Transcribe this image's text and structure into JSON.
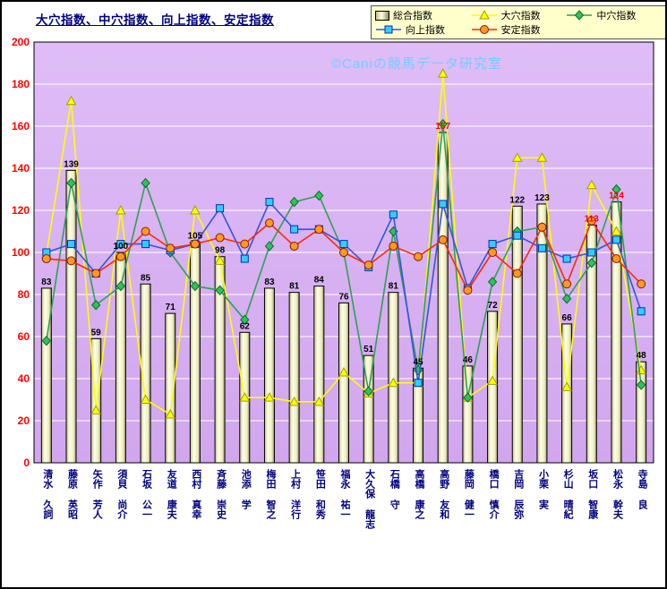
{
  "chart_data": {
    "type": "bar+line",
    "title": "大穴指数、中穴指数、向上指数、安定指数",
    "watermark": "©Caniの競馬データ研究室",
    "ylim": [
      0,
      200
    ],
    "ytick_step": 20,
    "grid": true,
    "legend_position": "top-right",
    "axis_label_color": "#ff0000",
    "category_label_color": "#000080",
    "categories": [
      "清水 久詞",
      "藤原 英昭",
      "矢作 芳人",
      "須貝 尚介",
      "石坂 公一",
      "友道 康夫",
      "西村 真幸",
      "斉藤 崇史",
      "池添 学",
      "梅田 智之",
      "上村 洋行",
      "笹田 和秀",
      "福永 祐一",
      "大久保 龍志",
      "石橋 守",
      "高橋 康之",
      "高野 友和",
      "藤岡 健一",
      "橋口 慎介",
      "吉岡 辰弥",
      "小栗 実",
      "杉山 晴紀",
      "坂口 智康",
      "松永 幹夫",
      "寺島 良"
    ],
    "bar_series": {
      "name": "総合指数",
      "values": [
        83,
        139,
        59,
        100,
        85,
        71,
        105,
        98,
        62,
        83,
        81,
        84,
        76,
        51,
        81,
        45,
        157,
        46,
        72,
        122,
        123,
        66,
        113,
        124,
        48
      ],
      "label_color": "#000000",
      "highlight_label_color": "#ff0000",
      "highlight_label_indices": [
        16,
        22,
        23
      ]
    },
    "line_series": [
      {
        "name": "大穴指数",
        "marker": "triangle",
        "line_color": "#ffff00",
        "marker_fill": "#ffff00",
        "marker_stroke": "#a0a000",
        "values": [
          99,
          172,
          25,
          120,
          30,
          23,
          120,
          96,
          31,
          31,
          29,
          29,
          43,
          33,
          38,
          38,
          185,
          31,
          39,
          145,
          145,
          36,
          132,
          110,
          44
        ]
      },
      {
        "name": "中穴指数",
        "marker": "diamond",
        "line_color": "#2fa052",
        "marker_fill": "#2fc25a",
        "marker_stroke": "#0e6a2e",
        "values": [
          58,
          133,
          75,
          84,
          133,
          100,
          84,
          82,
          68,
          103,
          124,
          127,
          100,
          34,
          110,
          44,
          161,
          31,
          86,
          110,
          112,
          78,
          95,
          130,
          37
        ]
      },
      {
        "name": "向上指数",
        "marker": "square",
        "line_color": "#3355dd",
        "marker_fill": "#33ccff",
        "marker_stroke": "#0033aa",
        "values": [
          100,
          104,
          90,
          104,
          104,
          101,
          104,
          121,
          97,
          124,
          111,
          111,
          104,
          93,
          118,
          38,
          123,
          83,
          104,
          108,
          102,
          97,
          100,
          106,
          72
        ]
      },
      {
        "name": "安定指数",
        "marker": "circle",
        "line_color": "#ff2a00",
        "marker_fill": "#ff9922",
        "marker_stroke": "#8a1a00",
        "values": [
          97,
          96,
          90,
          98,
          110,
          102,
          104,
          107,
          104,
          114,
          103,
          111,
          100,
          94,
          103,
          98,
          106,
          82,
          100,
          90,
          112,
          85,
          115,
          97,
          85
        ]
      }
    ]
  }
}
